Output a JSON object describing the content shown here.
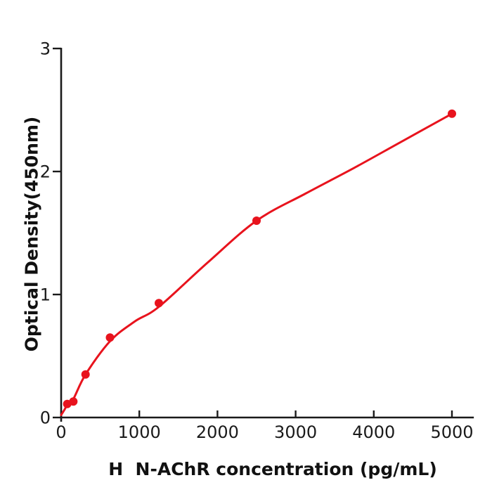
{
  "colors": {
    "accent_red": "#e8131d",
    "axis_black": "#1a1a1a",
    "background": "#ffffff"
  },
  "chart_data": {
    "type": "scatter",
    "curve": "fitted-smooth",
    "title": "",
    "xlabel": "H  N-AChR concentration (pg/mL)",
    "ylabel": "Optical Density(450nm)",
    "xlim": [
      0,
      5280
    ],
    "ylim": [
      0,
      3
    ],
    "xticks": [
      0,
      1000,
      2000,
      3000,
      4000,
      5000
    ],
    "yticks": [
      0,
      1,
      2,
      3
    ],
    "grid": false,
    "legend": "none",
    "marker_color": "#e8131d",
    "line_color": "#e8131d",
    "axis_color": "#1a1a1a",
    "tick_label_color": "#1a1a1a",
    "points": [
      [
        78,
        0.11
      ],
      [
        156,
        0.13
      ],
      [
        312,
        0.35
      ],
      [
        625,
        0.65
      ],
      [
        1250,
        0.93
      ],
      [
        2500,
        1.6
      ],
      [
        5000,
        2.47
      ]
    ],
    "fit_curve": [
      [
        0,
        0.02
      ],
      [
        40,
        0.06
      ],
      [
        78,
        0.1
      ],
      [
        156,
        0.15
      ],
      [
        312,
        0.35
      ],
      [
        625,
        0.62
      ],
      [
        940,
        0.78
      ],
      [
        1250,
        0.9
      ],
      [
        1875,
        1.26
      ],
      [
        2500,
        1.6
      ],
      [
        3125,
        1.82
      ],
      [
        3750,
        2.03
      ],
      [
        4375,
        2.25
      ],
      [
        5000,
        2.47
      ]
    ]
  }
}
